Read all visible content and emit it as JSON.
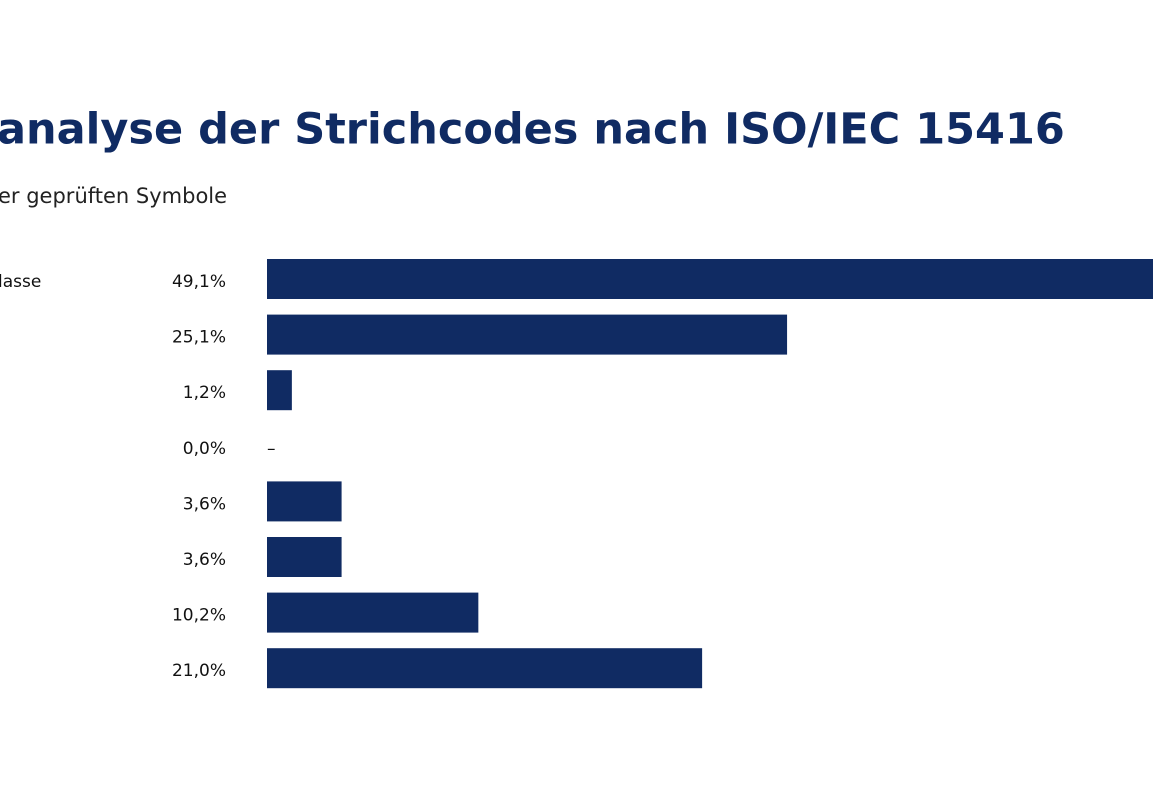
{
  "chart_data": {
    "type": "hbar",
    "title": "analyse der Strichcodes nach ISO/IEC 15416",
    "subtitle": "er geprüften Symbole",
    "categories": [
      "lasse",
      null,
      null,
      null,
      null,
      null,
      null,
      null
    ],
    "values": [
      49.1,
      25.1,
      1.2,
      0.0,
      3.6,
      3.6,
      10.2,
      21.0
    ],
    "value_labels": [
      "49,1%",
      "25,1%",
      "1,2%",
      "0,0%",
      "3,6%",
      "3,6%",
      "10,2%",
      "21,0%"
    ],
    "annotations": [
      "–"
    ],
    "color": "#102b63"
  }
}
